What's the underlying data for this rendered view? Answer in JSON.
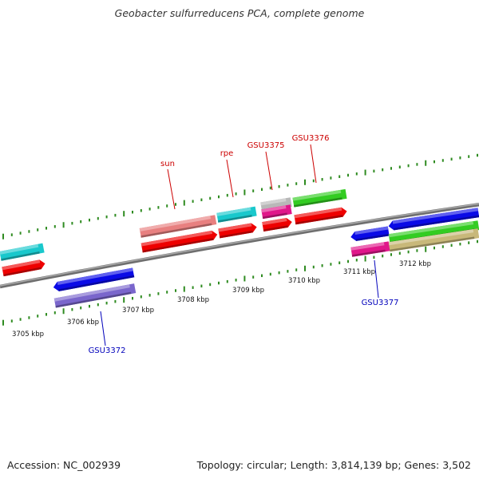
{
  "title": "Geobacter sulfurreducens PCA, complete genome",
  "footer": {
    "accession": "Accession: NC_002939",
    "stats": "Topology: circular; Length: 3,814,139 bp; Genes: 3,502"
  },
  "scale": {
    "ticks": [
      "3705 kbp",
      "3706 kbp",
      "3707 kbp",
      "3708 kbp",
      "3709 kbp",
      "3710 kbp",
      "3711 kbp",
      "3712 kbp"
    ]
  },
  "gene_labels": [
    {
      "text": "sun",
      "color": "#cc0000"
    },
    {
      "text": "rpe",
      "color": "#cc0000"
    },
    {
      "text": "GSU3375",
      "color": "#cc0000"
    },
    {
      "text": "GSU3376",
      "color": "#cc0000"
    },
    {
      "text": "GSU3372",
      "color": "#0000bb"
    },
    {
      "text": "GSU3377",
      "color": "#0000bb"
    }
  ],
  "colors": {
    "backbone": "#8a8a8a",
    "tick_green": "#2e8b20",
    "red": "#ee0000",
    "cyan": "#19c8cc",
    "salmon": "#e88080",
    "gray": "#b8b8b8",
    "magenta": "#e0178a",
    "green": "#33cc22",
    "blue": "#0a0ae6",
    "purple": "#7a66cc",
    "khaki": "#c8b87a"
  }
}
